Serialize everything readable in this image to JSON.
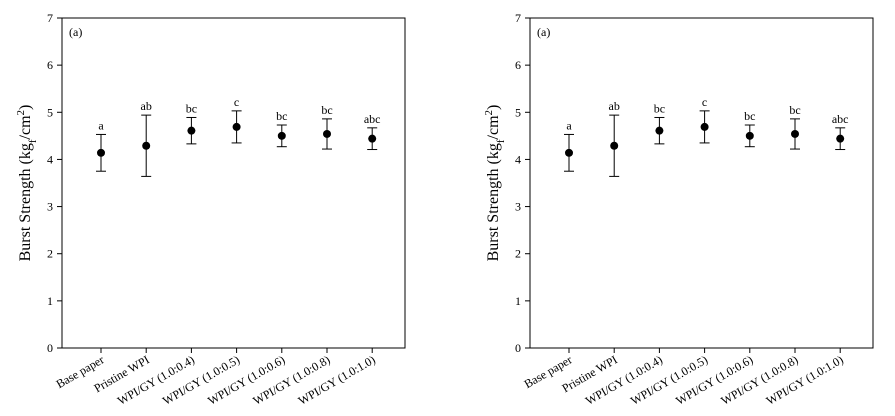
{
  "chart_data": [
    {
      "type": "scatter",
      "annotation": "(a)",
      "ylabel": [
        "Burst Strength (kg",
        "f",
        "/cm",
        "2",
        ")"
      ],
      "categories": [
        "Base paper",
        "Pristine WPI",
        "WPI/GY (1.0:0.4)",
        "WPI/GY (1.0:0.5)",
        "WPI/GY (1.0:0.6)",
        "WPI/GY (1.0:0.8)",
        "WPI/GY (1.0:1.0)"
      ],
      "values": [
        4.14,
        4.29,
        4.61,
        4.69,
        4.5,
        4.54,
        4.44
      ],
      "errors": [
        0.39,
        0.65,
        0.28,
        0.34,
        0.23,
        0.32,
        0.23
      ],
      "letters": [
        "a",
        "ab",
        "bc",
        "c",
        "bc",
        "bc",
        "abc"
      ],
      "color": "#000000",
      "ylim": [
        0,
        7
      ],
      "yticks": [
        0,
        1,
        2,
        3,
        4,
        5,
        6,
        7
      ]
    },
    {
      "type": "scatter",
      "annotation": "(a)",
      "ylabel": [
        "Burst Strength (kg",
        "f",
        "/cm",
        "2",
        ")"
      ],
      "categories": [
        "Base paper",
        "Pristine WPI",
        "WPI/GY (1.0:0.4)",
        "WPI/GY (1.0:0.5)",
        "WPI/GY (1.0:0.6)",
        "WPI/GY (1.0:0.8)",
        "WPI/GY (1.0:1.0)"
      ],
      "values": [
        4.14,
        4.29,
        4.61,
        4.69,
        4.5,
        4.54,
        4.44
      ],
      "errors": [
        0.39,
        0.65,
        0.28,
        0.34,
        0.23,
        0.32,
        0.23
      ],
      "letters": [
        "a",
        "ab",
        "bc",
        "c",
        "bc",
        "bc",
        "abc"
      ],
      "color": "#000000",
      "ylim": [
        0,
        7
      ],
      "yticks": [
        0,
        1,
        2,
        3,
        4,
        5,
        6,
        7
      ]
    }
  ]
}
